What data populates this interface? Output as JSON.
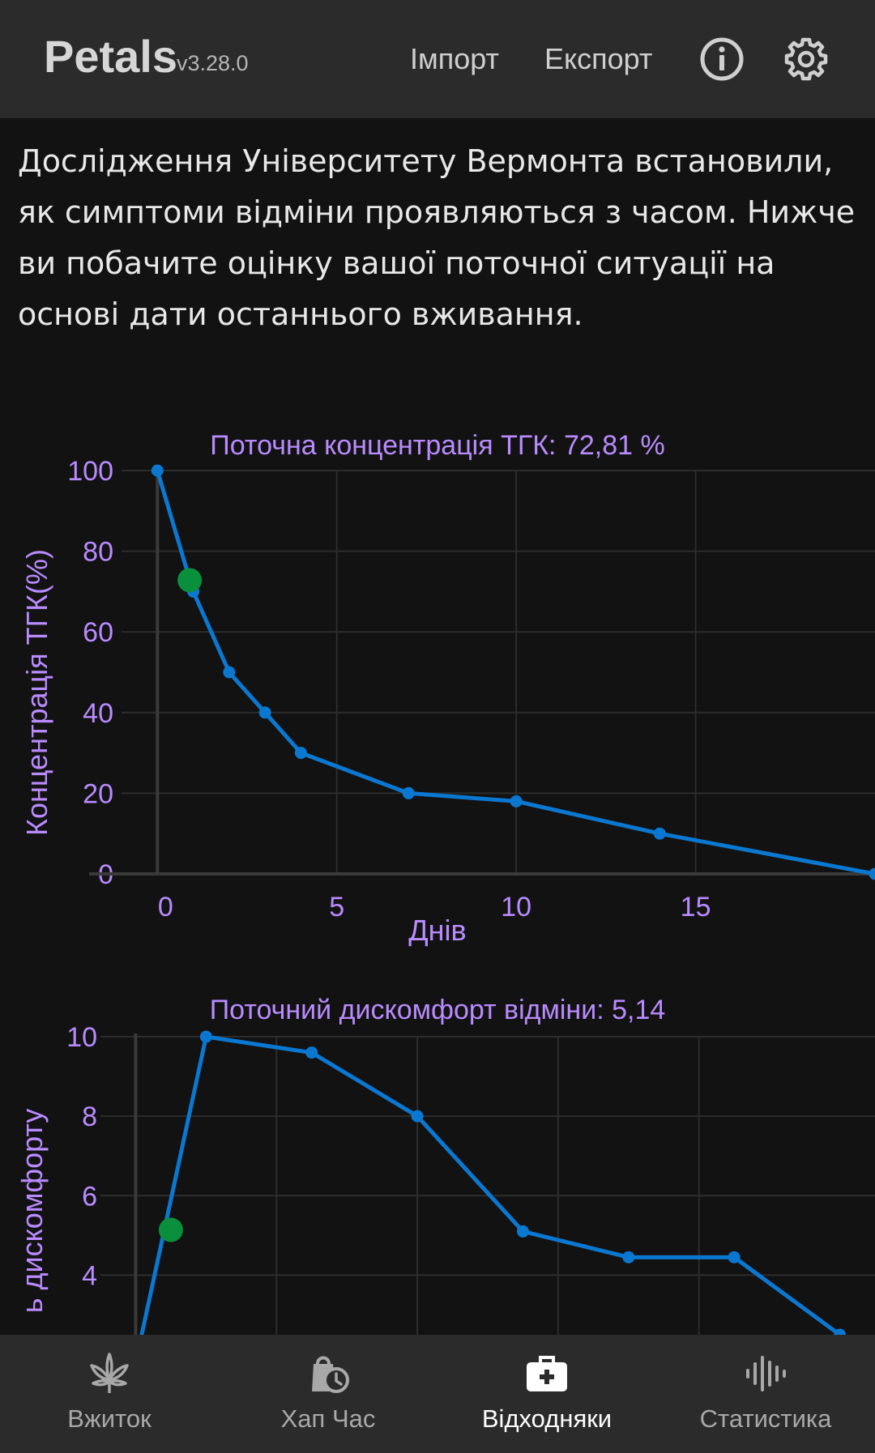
{
  "header": {
    "app_name": "Petals",
    "version": "v3.28.0",
    "import_label": "Імпорт",
    "export_label": "Експорт",
    "info_icon": "info-icon",
    "settings_icon": "gear-icon"
  },
  "intro": {
    "text": "Дослідження Університету Вермонта встановили, як симптоми відміни проявляються з часом. Нижче ви побачите оцінку вашої поточної ситуації на основі дати останнього вживання."
  },
  "colors": {
    "line": "#0a78d1",
    "current_point": "#0a8f3c",
    "label": "#b98bff",
    "header_bg": "#2b2b2b",
    "page_bg": "#121212"
  },
  "chart_data": [
    {
      "type": "line",
      "title": "Поточна концентрація ТГК: 72,81 %",
      "xlabel": "Днів",
      "ylabel": "Концентрація ТГК(%)",
      "x_ticks": [
        "0",
        "5",
        "10",
        "15"
      ],
      "y_ticks": [
        "0",
        "20",
        "40",
        "60",
        "80",
        "100"
      ],
      "xlim": [
        -1,
        20
      ],
      "ylim": [
        0,
        100
      ],
      "grid": true,
      "series": [
        {
          "x": [
            0,
            1,
            2,
            3,
            4,
            7,
            10,
            14,
            20
          ],
          "y": [
            100,
            70,
            50,
            40,
            30,
            20,
            18,
            10,
            0
          ]
        }
      ],
      "current_point": {
        "x": 0.9,
        "y": 72.81
      }
    },
    {
      "type": "line",
      "title": "Поточний дискомфорт відміни: 5,14",
      "xlabel": "",
      "ylabel": "ь дискомфорту",
      "x_ticks": [],
      "y_ticks": [
        "4",
        "6",
        "8",
        "10"
      ],
      "xlim": [
        -1,
        21
      ],
      "ylim": [
        2.5,
        10
      ],
      "grid": true,
      "series": [
        {
          "x": [
            0,
            2,
            5,
            8,
            11,
            14,
            17,
            20
          ],
          "y": [
            1.8,
            10,
            9.6,
            8,
            5.1,
            4.45,
            4.45,
            2.5
          ]
        }
      ],
      "current_point": {
        "x": 1,
        "y": 5.14
      }
    }
  ],
  "nav": {
    "items": [
      {
        "label": "Вжиток",
        "icon": "cannabis-leaf-icon",
        "active": false
      },
      {
        "label": "Хап Час",
        "icon": "bag-clock-icon",
        "active": false
      },
      {
        "label": "Відходняки",
        "icon": "medical-kit-icon",
        "active": true
      },
      {
        "label": "Статистика",
        "icon": "waveform-icon",
        "active": false
      }
    ]
  }
}
